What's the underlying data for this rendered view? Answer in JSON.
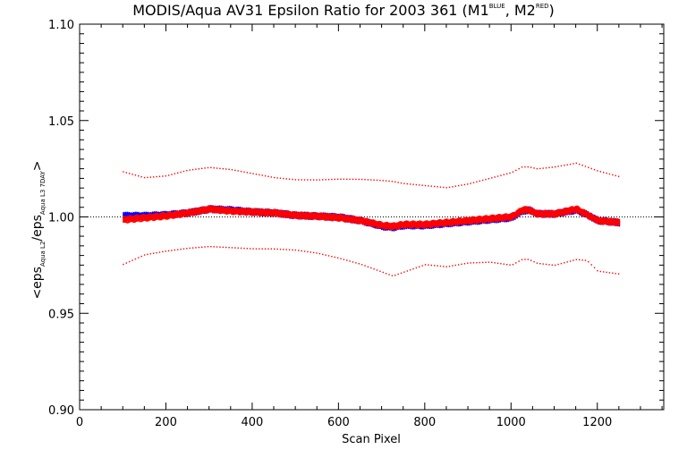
{
  "title": {
    "main": "MODIS/Aqua AV31 Epsilon Ratio for 2003 361 (M1",
    "sup1": "BLUE",
    "mid": ", M2",
    "sup2": "RED",
    "end": ")"
  },
  "xlabel": "Scan Pixel",
  "ylabel": {
    "open": "<eps",
    "sub1": "Aqua L2",
    "slash": "/eps",
    "sub2": "Aqua L3 7DAY",
    "close": ">"
  },
  "colors": {
    "m1": "#0000ff",
    "m2": "#ff0000",
    "axis": "#000000"
  },
  "chart_data": {
    "type": "scatter",
    "xlim": [
      0,
      1354
    ],
    "ylim": [
      0.9,
      1.1
    ],
    "x_ticks": [
      0,
      200,
      400,
      600,
      800,
      1000,
      1200
    ],
    "y_ticks": [
      "0.90",
      "0.95",
      "1.00",
      "1.05",
      "1.10"
    ],
    "reference_line": 1.0,
    "series": [
      {
        "color": "blue",
        "x": [
          100,
          150,
          200,
          250,
          300,
          350,
          400,
          450,
          500,
          550,
          600,
          650,
          700,
          725,
          750,
          800,
          850,
          900,
          950,
          1000,
          1025,
          1040,
          1060,
          1100,
          1150,
          1175,
          1200,
          1250
        ],
        "mean": [
          1.001,
          1.001,
          1.0015,
          1.0025,
          1.0045,
          1.004,
          1.003,
          1.0025,
          1.0012,
          1.0008,
          1.0003,
          0.9985,
          0.9955,
          0.995,
          0.996,
          0.996,
          0.997,
          0.998,
          0.999,
          1.0,
          1.0035,
          1.004,
          1.002,
          1.002,
          1.004,
          1.0015,
          0.9985,
          0.9975
        ]
      },
      {
        "color": "red",
        "x": [
          100,
          150,
          200,
          250,
          300,
          350,
          400,
          450,
          500,
          550,
          600,
          650,
          700,
          725,
          750,
          800,
          850,
          900,
          950,
          1000,
          1025,
          1040,
          1060,
          1100,
          1150,
          1175,
          1200,
          1250
        ],
        "mean": [
          0.999,
          1.0,
          1.001,
          1.0025,
          1.0045,
          1.0035,
          1.003,
          1.0025,
          1.0012,
          1.0008,
          1.0,
          0.9985,
          0.996,
          0.9955,
          0.9965,
          0.9965,
          0.9975,
          0.9985,
          0.9995,
          1.0005,
          1.004,
          1.004,
          1.002,
          1.002,
          1.0045,
          1.0015,
          0.9985,
          0.9975
        ],
        "upper": [
          1.023,
          1.02,
          1.021,
          1.024,
          1.0255,
          1.0245,
          1.0225,
          1.0205,
          1.0195,
          1.0195,
          1.02,
          1.02,
          1.0195,
          1.019,
          1.018,
          1.017,
          1.016,
          1.018,
          1.021,
          1.024,
          1.027,
          1.027,
          1.026,
          1.027,
          1.029,
          1.027,
          1.025,
          1.022
        ],
        "lower": [
          0.975,
          0.98,
          0.982,
          0.9835,
          0.9845,
          0.984,
          0.9835,
          0.9835,
          0.983,
          0.9815,
          0.979,
          0.976,
          0.972,
          0.97,
          0.972,
          0.976,
          0.975,
          0.977,
          0.9775,
          0.976,
          0.979,
          0.979,
          0.977,
          0.976,
          0.979,
          0.9785,
          0.973,
          0.9715
        ]
      }
    ],
    "grid": false
  }
}
